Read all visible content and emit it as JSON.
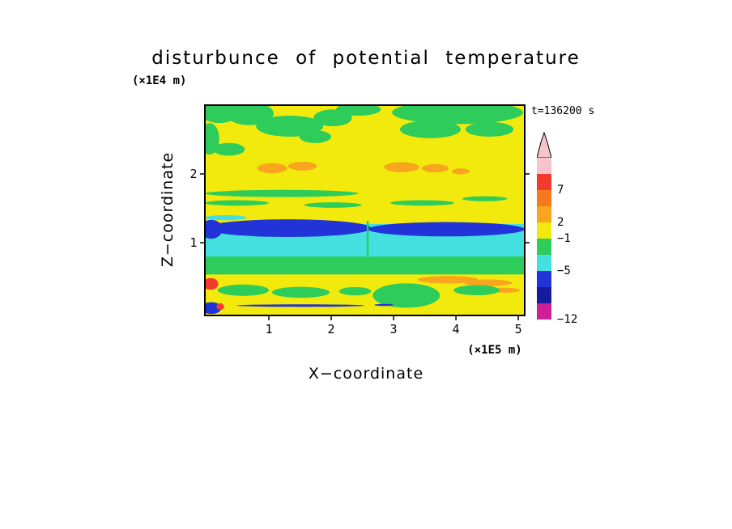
{
  "title": "disturbunce of potential temperature",
  "time_label": "t=136200 s",
  "axes": {
    "y_unit": "(×1E4 m)",
    "x_unit": "(×1E5 m)",
    "y_label": "Z−coordinate",
    "x_label": "X−coordinate",
    "x_ticks": [
      {
        "label": "1",
        "f": 0.2
      },
      {
        "label": "2",
        "f": 0.395
      },
      {
        "label": "3",
        "f": 0.59
      },
      {
        "label": "4",
        "f": 0.785
      },
      {
        "label": "5",
        "f": 0.98
      }
    ],
    "y_ticks": [
      {
        "label": "2",
        "f": 0.327
      },
      {
        "label": "1",
        "f": 0.654
      }
    ]
  },
  "colorbar": {
    "arrow_color": "#f5c4cc",
    "segments": [
      "#f5c4cc",
      "#f23b2e",
      "#f47a1c",
      "#f9a51e",
      "#f2ea0c",
      "#2ecc5a",
      "#44e0e0",
      "#2233d8",
      "#161b9e",
      "#cf1f96"
    ],
    "labels": [
      {
        "text": "7",
        "boundary": 2
      },
      {
        "text": "2",
        "boundary": 4
      },
      {
        "text": "−1",
        "boundary": 5
      },
      {
        "text": "−5",
        "boundary": 7
      },
      {
        "text": "−12",
        "boundary": 10
      }
    ]
  },
  "chart_data": {
    "type": "filled_contour",
    "title": "disturbunce of potential temperature",
    "xlabel": "X−coordinate (×1E5 m)",
    "ylabel": "Z−coordinate (×1E4 m)",
    "x_range": [
      0,
      5.1
    ],
    "y_range": [
      0,
      3.1
    ],
    "time_seconds": 136200,
    "colorbar_values": [
      7,
      2,
      -1,
      -5,
      -12
    ],
    "legend_position": "right",
    "grid": false,
    "palette": {
      "yellow": "#f2ea0c",
      "green": "#2ecc5a",
      "cyan": "#44e0e0",
      "navy": "#2233d8",
      "orange": "#f9a51e",
      "red": "#f23b2e"
    },
    "shapes": [
      {
        "t": "rect",
        "x0": 0,
        "y0": 0,
        "x1": 1,
        "y1": 1,
        "c": "yellow"
      },
      {
        "t": "ellipse",
        "x": 0.045,
        "y": 0.035,
        "rx": 0.06,
        "ry": 0.05,
        "c": "green"
      },
      {
        "t": "ellipse",
        "x": 0.14,
        "y": 0.04,
        "rx": 0.075,
        "ry": 0.055,
        "c": "green"
      },
      {
        "t": "ellipse",
        "x": 0.265,
        "y": 0.1,
        "rx": 0.105,
        "ry": 0.05,
        "c": "green"
      },
      {
        "t": "ellipse",
        "x": 0.4,
        "y": 0.06,
        "rx": 0.06,
        "ry": 0.04,
        "c": "green"
      },
      {
        "t": "ellipse",
        "x": 0.345,
        "y": 0.15,
        "rx": 0.05,
        "ry": 0.03,
        "c": "green"
      },
      {
        "t": "ellipse",
        "x": 0.48,
        "y": 0.02,
        "rx": 0.07,
        "ry": 0.03,
        "c": "green"
      },
      {
        "t": "ellipse",
        "x": 0.79,
        "y": 0.035,
        "rx": 0.205,
        "ry": 0.055,
        "c": "green"
      },
      {
        "t": "ellipse",
        "x": 0.705,
        "y": 0.115,
        "rx": 0.095,
        "ry": 0.042,
        "c": "green"
      },
      {
        "t": "ellipse",
        "x": 0.89,
        "y": 0.115,
        "rx": 0.075,
        "ry": 0.035,
        "c": "green"
      },
      {
        "t": "ellipse",
        "x": 0.015,
        "y": 0.16,
        "rx": 0.03,
        "ry": 0.075,
        "c": "green"
      },
      {
        "t": "ellipse",
        "x": 0.075,
        "y": 0.21,
        "rx": 0.05,
        "ry": 0.03,
        "c": "green"
      },
      {
        "t": "ellipse",
        "x": 0.21,
        "y": 0.3,
        "rx": 0.047,
        "ry": 0.024,
        "c": "orange"
      },
      {
        "t": "ellipse",
        "x": 0.305,
        "y": 0.29,
        "rx": 0.045,
        "ry": 0.021,
        "c": "orange"
      },
      {
        "t": "ellipse",
        "x": 0.615,
        "y": 0.295,
        "rx": 0.055,
        "ry": 0.024,
        "c": "orange"
      },
      {
        "t": "ellipse",
        "x": 0.72,
        "y": 0.3,
        "rx": 0.042,
        "ry": 0.02,
        "c": "orange"
      },
      {
        "t": "ellipse",
        "x": 0.8,
        "y": 0.315,
        "rx": 0.028,
        "ry": 0.014,
        "c": "orange"
      },
      {
        "t": "ellipse",
        "x": 0.24,
        "y": 0.42,
        "rx": 0.24,
        "ry": 0.017,
        "c": "green"
      },
      {
        "t": "ellipse",
        "x": 0.1,
        "y": 0.465,
        "rx": 0.1,
        "ry": 0.013,
        "c": "green"
      },
      {
        "t": "ellipse",
        "x": 0.4,
        "y": 0.475,
        "rx": 0.09,
        "ry": 0.013,
        "c": "green"
      },
      {
        "t": "ellipse",
        "x": 0.68,
        "y": 0.465,
        "rx": 0.1,
        "ry": 0.013,
        "c": "green"
      },
      {
        "t": "ellipse",
        "x": 0.875,
        "y": 0.445,
        "rx": 0.07,
        "ry": 0.012,
        "c": "green"
      },
      {
        "t": "ellipse",
        "x": 0.065,
        "y": 0.535,
        "rx": 0.065,
        "ry": 0.012,
        "c": "cyan"
      },
      {
        "t": "rect",
        "x0": 0,
        "y0": 0.565,
        "x1": 1,
        "y1": 0.73,
        "c": "cyan"
      },
      {
        "t": "ellipse",
        "x": 0.26,
        "y": 0.585,
        "rx": 0.26,
        "ry": 0.042,
        "c": "navy"
      },
      {
        "t": "ellipse",
        "x": 0.755,
        "y": 0.59,
        "rx": 0.245,
        "ry": 0.034,
        "c": "navy"
      },
      {
        "t": "ellipse",
        "x": 0.02,
        "y": 0.59,
        "rx": 0.035,
        "ry": 0.045,
        "c": "navy"
      },
      {
        "t": "rect",
        "x0": 0,
        "y0": 0.72,
        "x1": 1,
        "y1": 0.805,
        "c": "green"
      },
      {
        "t": "rect",
        "x0": 0.506,
        "y0": 0.55,
        "x1": 0.512,
        "y1": 0.72,
        "c": "green"
      },
      {
        "t": "ellipse",
        "x": 0.76,
        "y": 0.83,
        "rx": 0.095,
        "ry": 0.018,
        "c": "orange"
      },
      {
        "t": "ellipse",
        "x": 0.885,
        "y": 0.845,
        "rx": 0.075,
        "ry": 0.016,
        "c": "orange"
      },
      {
        "t": "ellipse",
        "x": 0.935,
        "y": 0.88,
        "rx": 0.05,
        "ry": 0.012,
        "c": "orange"
      },
      {
        "t": "ellipse",
        "x": 0.018,
        "y": 0.85,
        "rx": 0.024,
        "ry": 0.028,
        "c": "red"
      },
      {
        "t": "ellipse",
        "x": 0.12,
        "y": 0.88,
        "rx": 0.08,
        "ry": 0.027,
        "c": "green"
      },
      {
        "t": "ellipse",
        "x": 0.3,
        "y": 0.89,
        "rx": 0.09,
        "ry": 0.026,
        "c": "green"
      },
      {
        "t": "ellipse",
        "x": 0.47,
        "y": 0.885,
        "rx": 0.05,
        "ry": 0.02,
        "c": "green"
      },
      {
        "t": "ellipse",
        "x": 0.63,
        "y": 0.905,
        "rx": 0.105,
        "ry": 0.058,
        "c": "green"
      },
      {
        "t": "ellipse",
        "x": 0.85,
        "y": 0.88,
        "rx": 0.072,
        "ry": 0.024,
        "c": "green"
      },
      {
        "t": "ellipse",
        "x": 0.3,
        "y": 0.953,
        "rx": 0.2,
        "ry": 0.006,
        "c": "navy"
      },
      {
        "t": "ellipse",
        "x": 0.56,
        "y": 0.95,
        "rx": 0.03,
        "ry": 0.005,
        "c": "navy"
      },
      {
        "t": "ellipse",
        "x": 0.02,
        "y": 0.965,
        "rx": 0.032,
        "ry": 0.028,
        "c": "navy"
      },
      {
        "t": "ellipse",
        "x": 0.048,
        "y": 0.958,
        "rx": 0.012,
        "ry": 0.016,
        "c": "red"
      }
    ]
  }
}
